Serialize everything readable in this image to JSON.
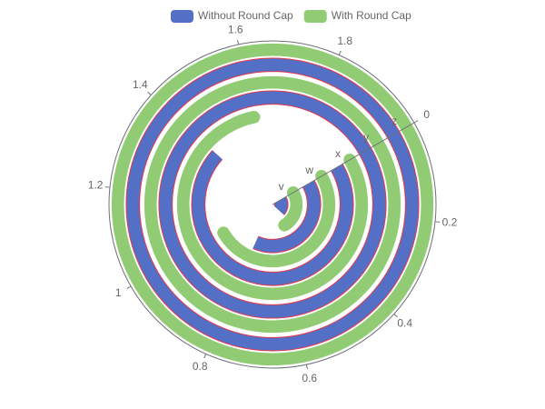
{
  "chart_data": {
    "type": "polar-bar",
    "categories": [
      "v",
      "w",
      "x",
      "y",
      "z"
    ],
    "xlim": [
      0,
      2
    ],
    "xticks": [
      0,
      0.2,
      0.4,
      0.6,
      0.8,
      1,
      1.2,
      1.4,
      1.6,
      1.8
    ],
    "series": [
      {
        "name": "Without Round Cap",
        "color": "#5470c6",
        "round_cap": false,
        "values": [
          0.4,
          0.8,
          1.4,
          2.2,
          2.95
        ]
      },
      {
        "name": "With Round Cap",
        "color": "#91cc75",
        "round_cap": true,
        "values": [
          0.5,
          1.0,
          1.6,
          2.5,
          3.0
        ]
      }
    ]
  }
}
